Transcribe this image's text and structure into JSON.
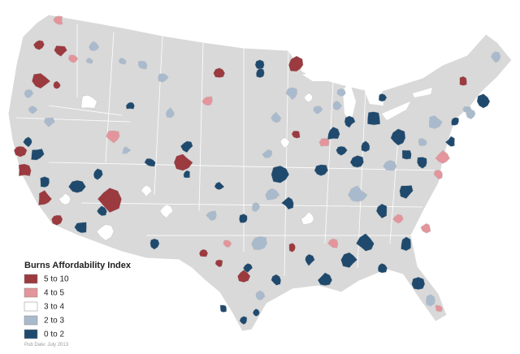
{
  "title": "Burns Affordability Index",
  "legend": [
    {
      "label": "5 to 10",
      "color": "#9b3a3f"
    },
    {
      "label": "4 to 5",
      "color": "#e3959b"
    },
    {
      "label": "3 to 4",
      "color": "#ffffff"
    },
    {
      "label": "2 to 3",
      "color": "#a9bacd"
    },
    {
      "label": "0 to 2",
      "color": "#1f4a6e"
    }
  ],
  "footnote": "Pub Date: July 2013"
}
